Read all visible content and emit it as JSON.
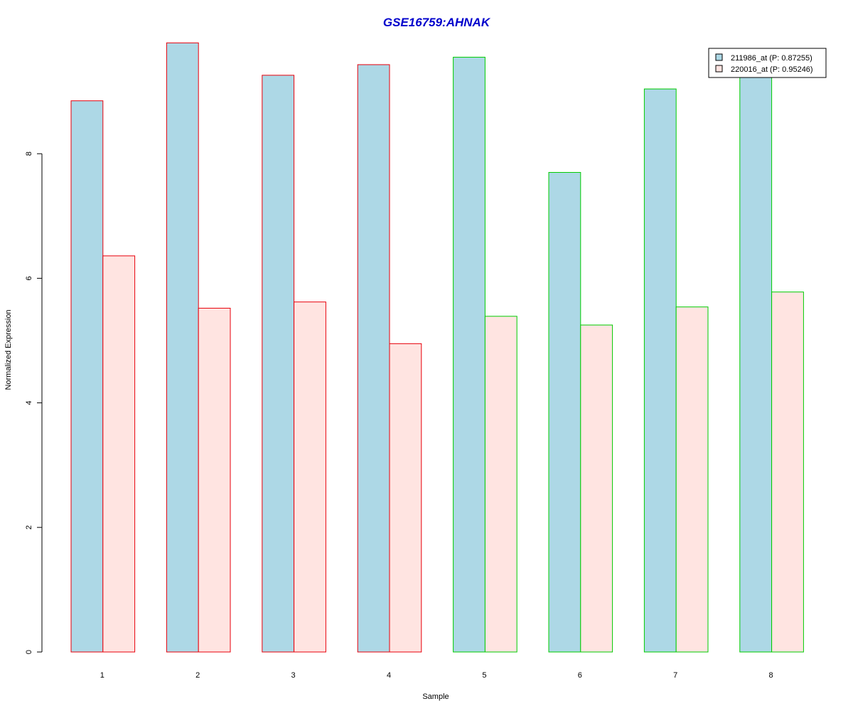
{
  "chart_data": {
    "type": "bar",
    "title": "GSE16759:AHNAK",
    "xlabel": "Sample",
    "ylabel": "Normalized Expression",
    "categories": [
      "1",
      "2",
      "3",
      "4",
      "5",
      "6",
      "7",
      "8"
    ],
    "yticks": [
      "0",
      "2",
      "4",
      "6",
      "8"
    ],
    "ylim": [
      0,
      9.9
    ],
    "grid": false,
    "legend_position": "top-right",
    "series": [
      {
        "name": "211986_at (P: 0.87255)",
        "fill": "#add8e6",
        "values": [
          8.85,
          9.78,
          9.26,
          9.43,
          9.55,
          7.7,
          9.04,
          9.26
        ]
      },
      {
        "name": "220016_at (P: 0.95246)",
        "fill": "#ffe4e1",
        "values": [
          6.36,
          5.52,
          5.62,
          4.95,
          5.39,
          5.25,
          5.54,
          5.78
        ]
      }
    ],
    "group_border_colors": [
      "#e8000b",
      "#e8000b",
      "#e8000b",
      "#e8000b",
      "#00cc00",
      "#00cc00",
      "#00cc00",
      "#00cc00"
    ],
    "title_color": "#0000cc"
  }
}
